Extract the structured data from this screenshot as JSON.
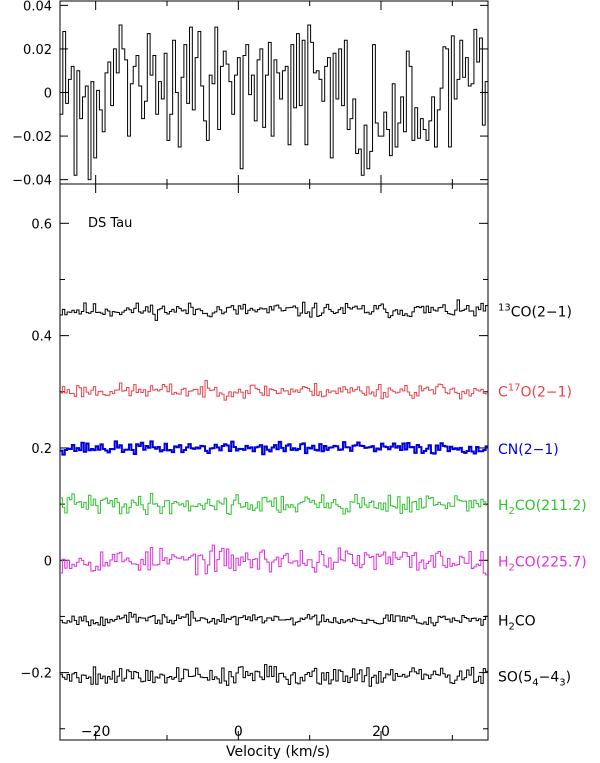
{
  "chart_data": [
    {
      "type": "line",
      "panel": "top",
      "xlim": [
        -25,
        35
      ],
      "ylim": [
        -0.042,
        0.042
      ],
      "yticks": [
        -0.04,
        -0.02,
        0,
        0.02,
        0.04
      ],
      "ytick_labels": [
        "−0.04",
        "−0.02",
        "0",
        "0.02",
        "0.04"
      ],
      "grid": false,
      "series": [
        {
          "color": "#000000",
          "step": true,
          "values": [
            -0.01,
            0.028,
            -0.005,
            0.006,
            0.012,
            -0.038,
            0.01,
            -0.012,
            -0.002,
            0.003,
            -0.04,
            0.005,
            -0.03,
            0.001,
            -0.008,
            -0.018,
            0.009,
            0.014,
            -0.006,
            0.02,
            0.009,
            0.031,
            0.02,
            0.015,
            -0.02,
            0.004,
            0.012,
            0.017,
            0.003,
            -0.012,
            -0.004,
            0.027,
            0.008,
            0.017,
            -0.01,
            0.005,
            -0.003,
            0.018,
            -0.022,
            -0.01,
            0.024,
            0.0,
            -0.025,
            0.007,
            0.022,
            -0.005,
            0.03,
            -0.008,
            0.016,
            0.028,
            0.003,
            -0.013,
            -0.022,
            0.008,
            0.004,
            0.03,
            -0.017,
            0.012,
            0.019,
            0.013,
            0.005,
            -0.01,
            0.008,
            0.016,
            -0.035,
            0.017,
            0.022,
            -0.001,
            0.008,
            -0.013,
            0.015,
            0.02,
            -0.016,
            0.008,
            0.023,
            -0.02,
            0.015,
            0.009,
            -0.003,
            0.01,
            0.012,
            -0.024,
            0.022,
            -0.007,
            0.027,
            -0.006,
            0.024,
            -0.024,
            0.031,
            0.023,
            0.009,
            0.01,
            0.006,
            -0.004,
            0.012,
            0.016,
            -0.03,
            0.018,
            -0.003,
            0.02,
            -0.006,
            0.024,
            -0.017,
            -0.012,
            -0.003,
            -0.028,
            -0.026,
            -0.038,
            -0.015,
            -0.035,
            -0.027,
            0.022,
            -0.014,
            -0.02,
            -0.02,
            -0.009,
            -0.017,
            -0.029,
            0.004,
            -0.025,
            -0.014,
            -0.002,
            -0.018,
            0.019,
            0.012,
            -0.022,
            -0.007,
            -0.021,
            -0.012,
            -0.017,
            -0.022,
            -0.013,
            -0.002,
            -0.025,
            -0.008,
            0.002,
            0.021,
            0.02,
            -0.025,
            0.026,
            -0.003,
            0.006,
            0.024,
            0.007,
            0.016,
            0.003,
            0.004,
            0.029,
            0.014,
            0.025,
            -0.015,
            0.005
          ]
        }
      ]
    },
    {
      "type": "line",
      "panel": "bottom",
      "title": "DS Tau",
      "xlabel": "Velocity (km/s)",
      "xlim": [
        -25,
        35
      ],
      "xticks": [
        -20,
        0,
        20
      ],
      "xtick_labels": [
        "−20",
        "0",
        "20"
      ],
      "ylim": [
        -0.32,
        0.67
      ],
      "yticks": [
        -0.2,
        0,
        0.2,
        0.4,
        0.6
      ],
      "ytick_labels": [
        "−0.2",
        "0",
        "0.2",
        "0.4",
        "0.6"
      ],
      "grid": false,
      "legend_position": "right",
      "series": [
        {
          "name_main": "",
          "name_sup": "13",
          "name_main2": "CO(2−1)",
          "name_sub": "",
          "name_end": "",
          "color": "#000000",
          "baseline": 0.445,
          "amplitude": 0.015,
          "seed": 11
        },
        {
          "name_main": "C",
          "name_sup": "17",
          "name_main2": "O(2−1)",
          "name_sub": "",
          "name_end": "",
          "color": "#e8424a",
          "baseline": 0.302,
          "amplitude": 0.015,
          "seed": 23
        },
        {
          "name_main": "CN(2−1)",
          "name_sup": "",
          "name_main2": "",
          "name_sub": "",
          "name_end": "",
          "color": "#0000dd",
          "baseline": 0.2,
          "amplitude": 0.012,
          "seed": 37
        },
        {
          "name_main": "H",
          "name_sup": "",
          "name_main2": "",
          "name_sub": "2",
          "name_end": "CO(211.2)",
          "color": "#2ec42e",
          "baseline": 0.1,
          "amplitude": 0.02,
          "seed": 41
        },
        {
          "name_main": "H",
          "name_sup": "",
          "name_main2": "",
          "name_sub": "2",
          "name_end": "CO(225.7)",
          "color": "#e02ee0",
          "baseline": 0.0,
          "amplitude": 0.025,
          "seed": 53
        },
        {
          "name_main": "H",
          "name_sup": "",
          "name_main2": "",
          "name_sub": "2",
          "name_end": "CO",
          "color": "#000000",
          "baseline": -0.105,
          "amplitude": 0.012,
          "seed": 67
        },
        {
          "name_main": "SO(5",
          "name_sup": "",
          "name_main2": "",
          "name_sub": "4",
          "name_end": "−4",
          "name_sub2": "3",
          "name_close": ")",
          "color": "#000000",
          "baseline": -0.205,
          "amplitude": 0.02,
          "seed": 79
        }
      ]
    }
  ]
}
